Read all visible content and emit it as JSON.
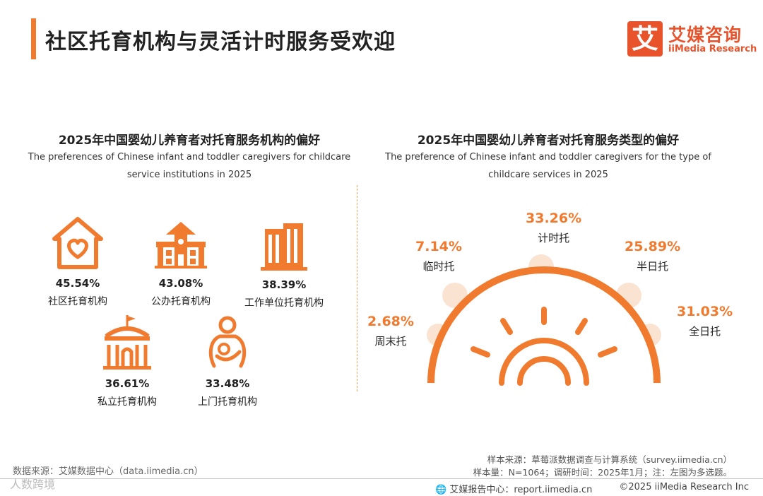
{
  "header": {
    "title": "社区托育机构与灵活计时服务受欢迎",
    "logo_mark": "艾",
    "logo_cn": "艾媒咨询",
    "logo_en": "iiMedia Research"
  },
  "colors": {
    "accent": "#f07a2e",
    "logo": "#e8532c",
    "sun_glow": "#fbe3d2"
  },
  "left_section": {
    "title": "2025年中国婴幼儿养育者对托育服务机构的偏好",
    "subtitle_line1": "The preferences of Chinese infant and toddler caregivers for childcare",
    "subtitle_line2": "service institutions in 2025"
  },
  "right_section": {
    "title": "2025年中国婴幼儿养育者对托育服务类型的偏好",
    "subtitle_line1": "The preference of Chinese infant and toddler caregivers for the type of",
    "subtitle_line2": "childcare services in 2025"
  },
  "chart_data": [
    {
      "type": "table",
      "title": "2025年中国婴幼儿养育者对托育服务机构的偏好",
      "categories": [
        "社区托育机构",
        "公办托育机构",
        "工作单位托育机构",
        "私立托育机构",
        "上门托育机构"
      ],
      "values": [
        45.54,
        43.08,
        38.39,
        36.61,
        33.48
      ],
      "labels": [
        "45.54%",
        "43.08%",
        "38.39%",
        "36.61%",
        "33.48%"
      ],
      "icons": [
        "heart-house-icon",
        "school-building-icon",
        "office-building-icon",
        "castle-gate-icon",
        "caregiver-baby-icon"
      ],
      "unit": "%"
    },
    {
      "type": "table",
      "title": "2025年中国婴幼儿养育者对托育服务类型的偏好",
      "categories": [
        "周末托",
        "临时托",
        "计时托",
        "半日托",
        "全日托"
      ],
      "values": [
        2.68,
        7.14,
        33.26,
        25.89,
        31.03
      ],
      "labels": [
        "2.68%",
        "7.14%",
        "33.26%",
        "25.89%",
        "31.03%"
      ],
      "unit": "%"
    }
  ],
  "footer": {
    "source_left": "数据来源：艾媒数据中心（data.iimedia.cn）",
    "sample_source": "样本来源：草莓派数据调查与计算系统（survey.iimedia.cn）",
    "sample_size": "样本量：N=1064；调研时间：2025年1月；注：左图为多选题。",
    "report_center": "艾媒报告中心：report.iimedia.cn",
    "copyright": "©2025  iiMedia Research  Inc",
    "watermark": "人数跨境"
  }
}
